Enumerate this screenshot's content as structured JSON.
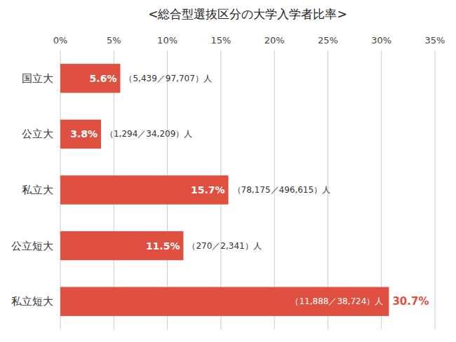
{
  "chart_data": {
    "type": "bar",
    "orientation": "horizontal",
    "title": "<総合型選抜区分の大学入学者比率>",
    "categories": [
      "私立短大",
      "公立短大",
      "私立大",
      "公立大",
      "国立大"
    ],
    "values": [
      30.7,
      11.5,
      15.7,
      3.8,
      5.6
    ],
    "value_labels": [
      "30.7%",
      "11.5%",
      "15.7%",
      "3.8%",
      "5.6%"
    ],
    "annotations": [
      "（11,888／38,724）人",
      "（270／2,341）人",
      "（78,175／496,615）人",
      "（1,294／34,209）人",
      "（5,439／97,707）人"
    ],
    "color": "#e05040",
    "xlim": [
      0,
      35
    ],
    "xticks": [
      {
        "value": 0,
        "label": "0%"
      },
      {
        "value": 5,
        "label": "5%"
      },
      {
        "value": 10,
        "label": "10%"
      },
      {
        "value": 15,
        "label": "15%"
      },
      {
        "value": 20,
        "label": "20%"
      },
      {
        "value": 25,
        "label": "25%"
      },
      {
        "value": 30,
        "label": "30%"
      },
      {
        "value": 35,
        "label": "35%"
      }
    ],
    "grid": true,
    "data_labels": true
  }
}
